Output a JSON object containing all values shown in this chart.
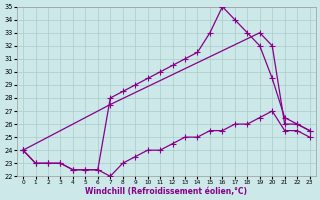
{
  "xlabel": "Windchill (Refroidissement éolien,°C)",
  "background_color": "#cce8e8",
  "grid_color": "#aacccc",
  "line_color": "#880088",
  "xlim": [
    -0.5,
    23.5
  ],
  "ylim": [
    22,
    35
  ],
  "x_ticks": [
    0,
    1,
    2,
    3,
    4,
    5,
    6,
    7,
    8,
    9,
    10,
    11,
    12,
    13,
    14,
    15,
    16,
    17,
    18,
    19,
    20,
    21,
    22,
    23
  ],
  "y_ticks": [
    22,
    23,
    24,
    25,
    26,
    27,
    28,
    29,
    30,
    31,
    32,
    33,
    34,
    35
  ],
  "line1_x": [
    0,
    1,
    2,
    3,
    4,
    5,
    6,
    7,
    8,
    9,
    10,
    11,
    12,
    13,
    14,
    15,
    16,
    17,
    18,
    19,
    20,
    21,
    22,
    23
  ],
  "line1_y": [
    24,
    23,
    23,
    23,
    22.5,
    22.5,
    22.5,
    28,
    28.5,
    29,
    29.5,
    30,
    30.5,
    31,
    31.5,
    33,
    35,
    34,
    33,
    32,
    29.5,
    26.5,
    26,
    25.5
  ],
  "line2_x": [
    0,
    7,
    19,
    20,
    21,
    22,
    23
  ],
  "line2_y": [
    24,
    27.5,
    33,
    32,
    26,
    26,
    25.5
  ],
  "line3_x": [
    0,
    1,
    2,
    3,
    4,
    5,
    6,
    7,
    8,
    9,
    10,
    11,
    12,
    13,
    14,
    15,
    16,
    17,
    18,
    19,
    20,
    21,
    22,
    23
  ],
  "line3_y": [
    24,
    23,
    23,
    23,
    22.5,
    22.5,
    22.5,
    22,
    23,
    23.5,
    24,
    24,
    24.5,
    25,
    25,
    25.5,
    25.5,
    26,
    26,
    26.5,
    27,
    25.5,
    25.5,
    25
  ],
  "markersize": 3,
  "linewidth": 0.9
}
